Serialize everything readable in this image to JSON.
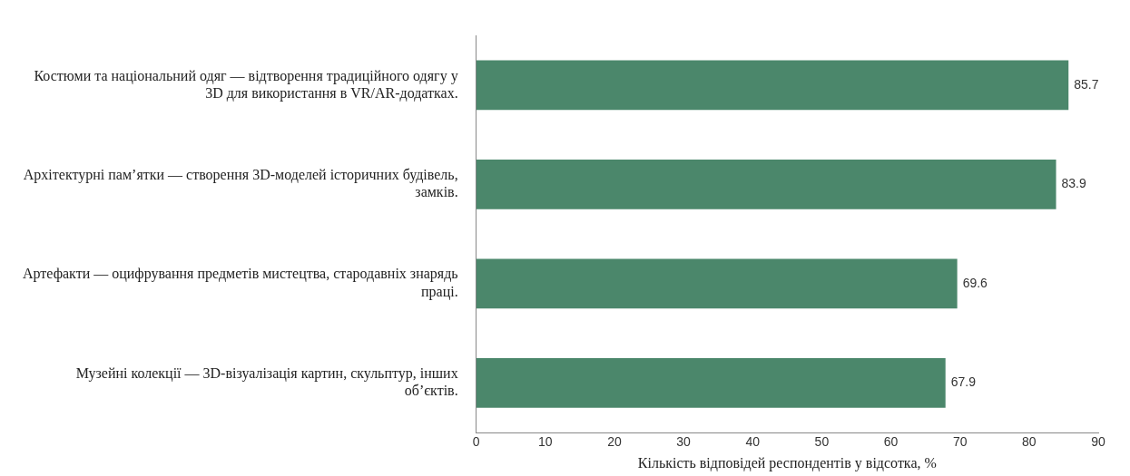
{
  "chart_data": {
    "type": "bar",
    "orientation": "horizontal",
    "categories": [
      "Костюми та національний одяг — відтворення традиційного одягу у 3D для використання в VR/AR-додатках.",
      "Архітектурні пам’ятки — створення 3D-моделей історичних будівель, замків.",
      "Артефакти — оцифрування предметів мистецтва, стародавніх знарядь праці.",
      "Музейні колекції — 3D-візуалізація картин, скульптур, інших об’єктів."
    ],
    "values": [
      85.7,
      83.9,
      69.6,
      67.9
    ],
    "color": "#4b876b",
    "xlim": [
      0,
      90
    ],
    "xticks": [
      0,
      10,
      20,
      30,
      40,
      50,
      60,
      70,
      80,
      90
    ],
    "xlabel": "Кількість відповідей респондентів у відсотка, %",
    "data_labels": true,
    "grid": false,
    "legend": false
  }
}
